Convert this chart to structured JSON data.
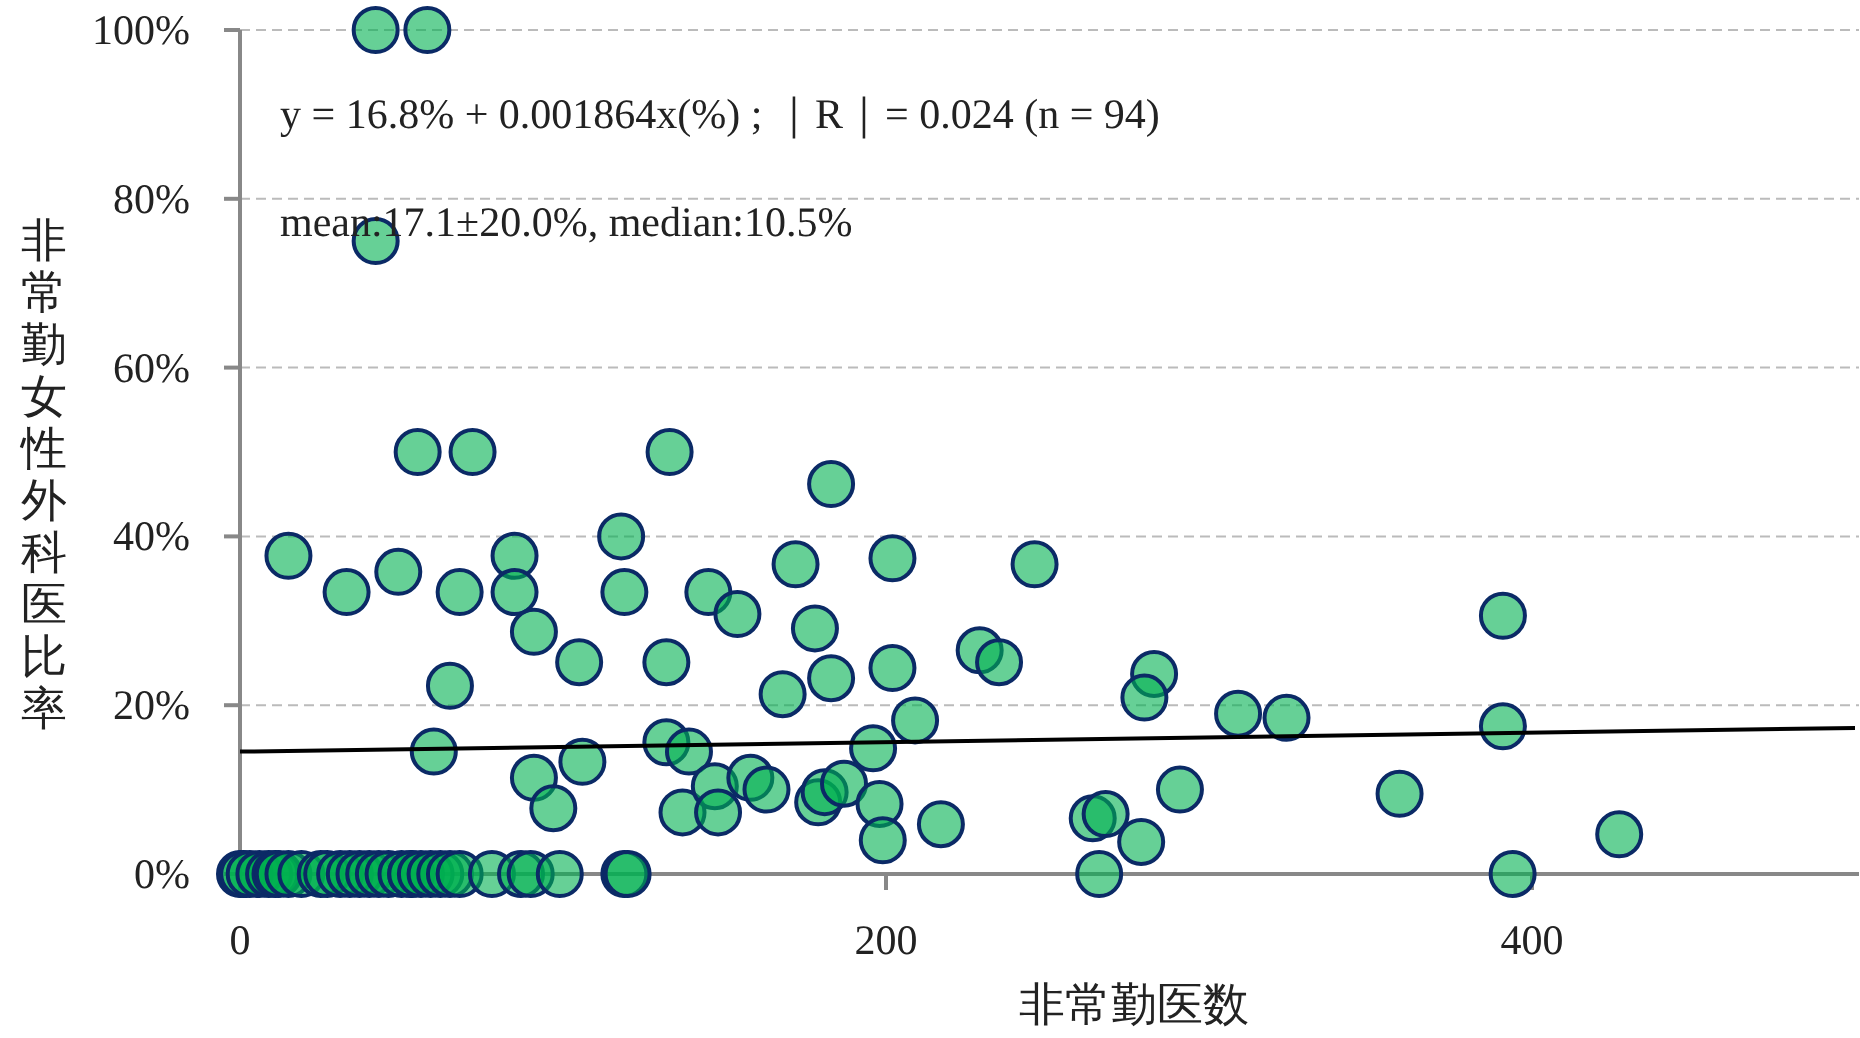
{
  "chart_data": {
    "type": "scatter",
    "xlabel": "非常勤医数",
    "ylabel": "非常勤女性外科医比率",
    "xlim": [
      0,
      500
    ],
    "xticks": [
      0,
      200,
      400
    ],
    "ylim": [
      0,
      100
    ],
    "yticks": [
      {
        "value": 0,
        "label": "0%"
      },
      {
        "value": 20,
        "label": "20%"
      },
      {
        "value": 40,
        "label": "40%"
      },
      {
        "value": 60,
        "label": "60%"
      },
      {
        "value": 80,
        "label": "80%"
      },
      {
        "value": 100,
        "label": "100%"
      }
    ],
    "grid": "y",
    "annotations": [
      "y = 16.8% + 0.001864x(%) ; ｜R｜= 0.024 (n = 94)",
      "mean:17.1±20.0%, median:10.5%"
    ],
    "series": [
      {
        "color": "#00b050",
        "marker": "circle",
        "x": [
          42,
          58,
          42,
          55,
          72,
          15,
          33,
          49,
          68,
          85,
          85,
          91,
          105,
          65,
          60,
          91,
          97,
          106,
          118,
          119,
          133,
          132,
          132,
          139,
          137,
          145,
          154,
          147,
          148,
          158,
          163,
          168,
          172,
          178,
          179,
          181,
          183,
          183,
          187,
          196,
          198,
          199,
          202,
          202,
          209,
          217,
          229,
          235,
          246,
          283,
          280,
          309,
          324,
          391,
          391,
          264,
          268,
          279,
          291,
          359,
          427,
          0,
          1,
          3,
          6,
          9,
          11,
          12,
          15,
          19,
          25,
          27,
          31,
          34,
          37,
          40,
          43,
          46,
          50,
          53,
          53,
          56,
          59,
          62,
          65,
          68,
          78,
          87,
          90,
          99,
          119,
          120,
          266,
          394
        ],
        "values": [
          100,
          100,
          75,
          50,
          50,
          37.7,
          33.4,
          35.8,
          33.4,
          37.7,
          33.4,
          28.7,
          25.1,
          22.3,
          14.5,
          11.4,
          7.8,
          13.3,
          40,
          33.4,
          50,
          25.1,
          15.6,
          14.5,
          7.3,
          33.4,
          30.8,
          10.4,
          7.3,
          11.4,
          10,
          21.3,
          36.7,
          29.1,
          8.5,
          9.7,
          46.2,
          23.2,
          10.7,
          14.9,
          8.3,
          4,
          37.4,
          24.4,
          18.2,
          5.9,
          26.5,
          25.1,
          36.7,
          23.7,
          20.9,
          19,
          18.5,
          30.6,
          17.5,
          6.6,
          7.1,
          3.8,
          10,
          9.5,
          4.7,
          0,
          0,
          0,
          0,
          0,
          0,
          0,
          0,
          0,
          0,
          0,
          0,
          0,
          0,
          0,
          0,
          0,
          0,
          0,
          0,
          0,
          0,
          0,
          0,
          0,
          0,
          0,
          0,
          0,
          0,
          0,
          0,
          0
        ]
      },
      {
        "type": "line",
        "color": "#000000",
        "x": [
          0,
          500
        ],
        "values": [
          14.5,
          17.3
        ],
        "marker": "none"
      }
    ]
  }
}
